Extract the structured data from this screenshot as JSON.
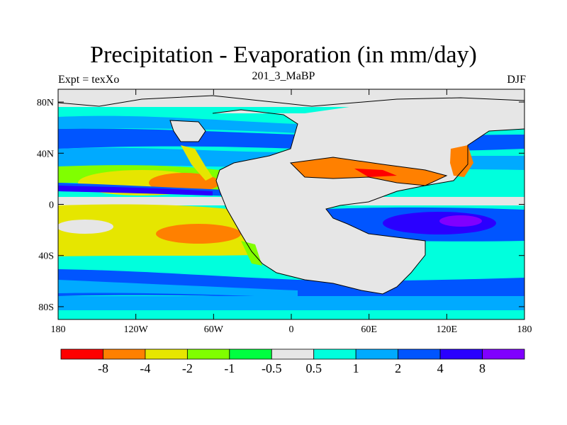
{
  "title": "Precipitation - Evaporation (in mm/day)",
  "subtitle": "201_3_MaBP",
  "left_label": "Expt = texXo",
  "right_label": "DJF",
  "map": {
    "y_ticks": [
      "80N",
      "40N",
      "0",
      "40S",
      "80S"
    ],
    "y_tick_values": [
      80,
      40,
      0,
      -40,
      -80
    ],
    "x_ticks": [
      "180",
      "120W",
      "60W",
      "0",
      "60E",
      "120E",
      "180"
    ],
    "x_tick_values": [
      -180,
      -120,
      -60,
      0,
      60,
      120,
      180
    ],
    "lon_range": [
      -180,
      180
    ],
    "lat_range": [
      -90,
      90
    ]
  },
  "colorbar": {
    "colors": [
      "#ff0000",
      "#ff8000",
      "#e6e600",
      "#80ff00",
      "#00ff40",
      "#e6e6e6",
      "#00ffdd",
      "#00aaff",
      "#0055ff",
      "#2a00ff",
      "#8000ff"
    ],
    "labels": [
      "-8",
      "-4",
      "-2",
      "-1",
      "-0.5",
      "0.5",
      "1",
      "2",
      "4",
      "8"
    ]
  },
  "colors": {
    "land": "#e6e6e6",
    "frame": "#000000"
  }
}
